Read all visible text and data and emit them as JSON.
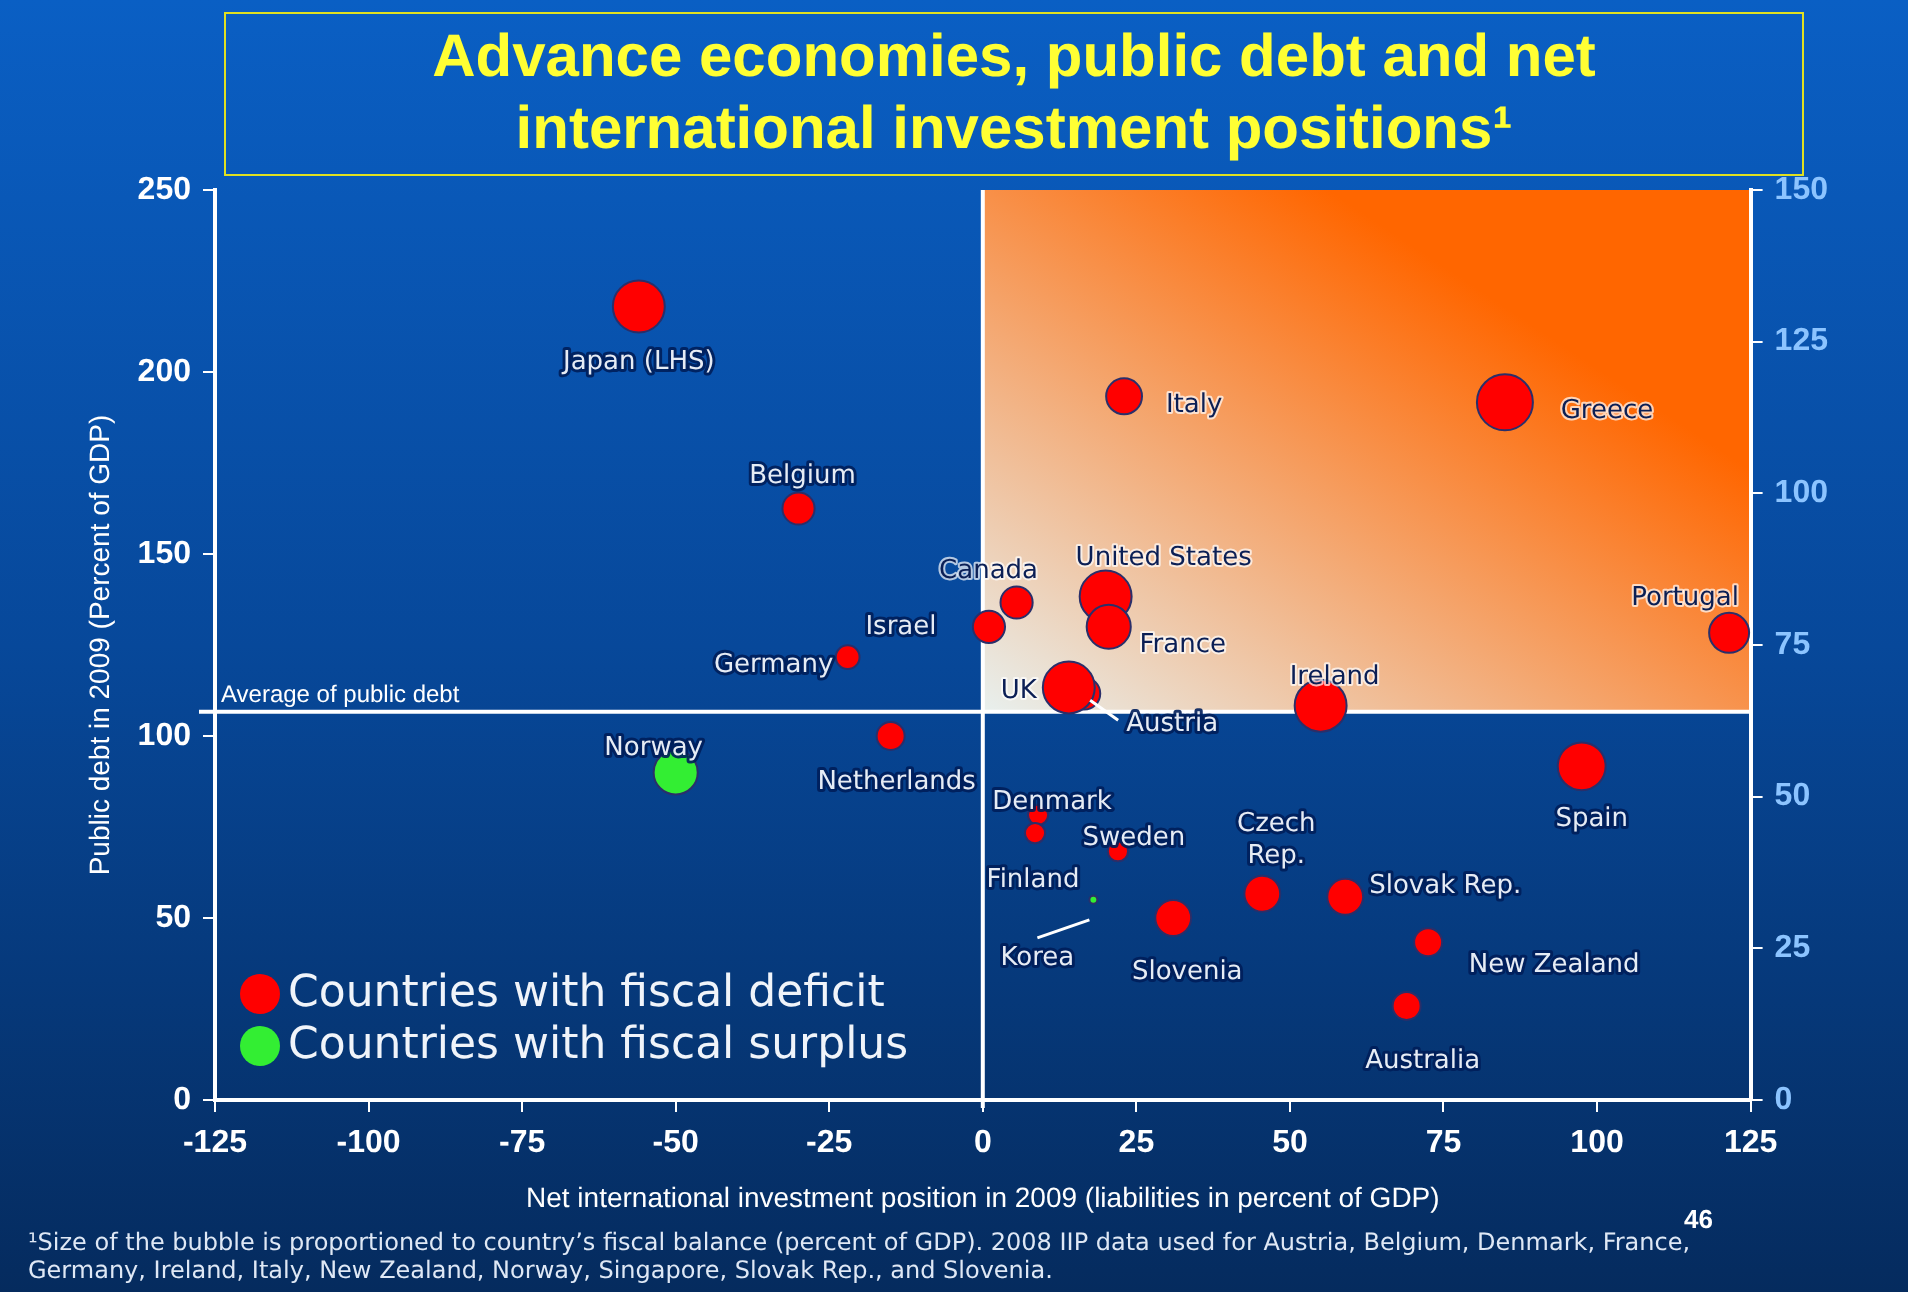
{
  "chart_data": {
    "type": "bubble",
    "title": "Advance economies, public debt and net international investment positions¹",
    "xlabel": "Net international investment position in 2009 (liabilities in percent of GDP)",
    "ylabel": "Public debt in 2009 (Percent of GDP)",
    "xlim": [
      -125,
      125
    ],
    "xticks": [
      -125,
      -100,
      -75,
      -50,
      -25,
      0,
      25,
      50,
      75,
      100,
      125
    ],
    "ylim": [
      0,
      250
    ],
    "yticks": [
      0,
      50,
      100,
      150,
      200,
      250
    ],
    "y2lim": [
      0,
      150
    ],
    "y2ticks": [
      0,
      25,
      50,
      75,
      100,
      125,
      150
    ],
    "grid": false,
    "legend": "bottom left",
    "series": [
      {
        "name": "Countries with fiscal deficit",
        "color": "#ff0000",
        "axis": "y2",
        "x": [
          -30,
          -22,
          -15,
          1,
          5.5,
          20,
          20.5,
          16.5,
          14,
          23,
          85,
          121.5,
          55,
          97.5,
          9,
          8.5,
          22,
          45.5,
          59,
          31,
          72.5,
          69
        ],
        "values": [
          97.5,
          73,
          60,
          78,
          82,
          83,
          78,
          67,
          68,
          116,
          115,
          77,
          65,
          55,
          47,
          44,
          41,
          34,
          33.5,
          30,
          26,
          15.5
        ],
        "sizes": [
          0.33,
          0.18,
          0.25,
          0.33,
          0.33,
          0.86,
          0.62,
          0.33,
          0.86,
          0.41,
          1,
          0.51,
          0.86,
          0.73,
          0.13,
          0.13,
          0.13,
          0.41,
          0.41,
          0.41,
          0.25,
          0.25
        ]
      },
      {
        "color": "#ff0000",
        "axis": "y",
        "x": [
          -56
        ],
        "values": [
          218
        ],
        "sizes": [
          0.86
        ]
      },
      {
        "name": "Countries with fiscal surplus",
        "color": "#33ee33",
        "axis": "y2",
        "x": [
          -50,
          18
        ],
        "values": [
          54,
          33
        ],
        "sizes": [
          0.62,
          0.02
        ]
      }
    ],
    "ref_lines": [
      {
        "axis": "y2",
        "value": 64,
        "label": "Average of public debt",
        "color": "#ffffff"
      },
      {
        "axis": "x",
        "value": 0,
        "label": null,
        "color": "#ffffff"
      }
    ],
    "bands": [
      {
        "axis": "x",
        "from": 0,
        "to": 125,
        "label": null,
        "color": "#ff6600"
      }
    ],
    "annotations": [
      {
        "text": "Japan (LHS)",
        "x": -56,
        "y": 218
      },
      {
        "text": "Belgium",
        "x": -30,
        "y": 162
      },
      {
        "text": "Germany",
        "x": -22,
        "y": 121
      },
      {
        "text": "Israel",
        "x": 1,
        "y": 130
      },
      {
        "text": "Netherlands",
        "x": -15,
        "y": 100
      },
      {
        "text": "Norway",
        "x": -50,
        "y": 90
      },
      {
        "text": "Canada",
        "x": 5.5,
        "y": 136
      },
      {
        "text": "United States",
        "x": 20,
        "y": 139
      },
      {
        "text": "France",
        "x": 20.5,
        "y": 130
      },
      {
        "text": "UK",
        "x": 14,
        "y": 114
      },
      {
        "text": "Austria",
        "x": 16.5,
        "y": 112
      },
      {
        "text": "Italy",
        "x": 23,
        "y": 193
      },
      {
        "text": "Greece",
        "x": 85,
        "y": 191
      },
      {
        "text": "Portugal",
        "x": 121.5,
        "y": 128
      },
      {
        "text": "Ireland",
        "x": 55,
        "y": 108
      },
      {
        "text": "Spain",
        "x": 97.5,
        "y": 92
      },
      {
        "text": "Denmark",
        "x": 9,
        "y": 79
      },
      {
        "text": "Finland",
        "x": 8.5,
        "y": 73
      },
      {
        "text": "Sweden",
        "x": 22,
        "y": 68
      },
      {
        "text": "Czech Rep.",
        "x": 45.5,
        "y": 57
      },
      {
        "text": "Slovak Rep.",
        "x": 59,
        "y": 56
      },
      {
        "text": "Slovenia",
        "x": 31,
        "y": 50
      },
      {
        "text": "New Zealand",
        "x": 72.5,
        "y": 43
      },
      {
        "text": "Australia",
        "x": 69,
        "y": 26
      },
      {
        "text": "Korea",
        "x": 18,
        "y": 55
      },
      "¹Size of the bubble  is proportioned to country’s fiscal balance (percent of GDP). 2008 IIP data used for Austria, Belgium, Denmark, France, Germany, Ireland, Italy, New Zealand, Norway, Singapore, Slovak Rep., and Slovenia.",
      "46"
    ]
  }
}
